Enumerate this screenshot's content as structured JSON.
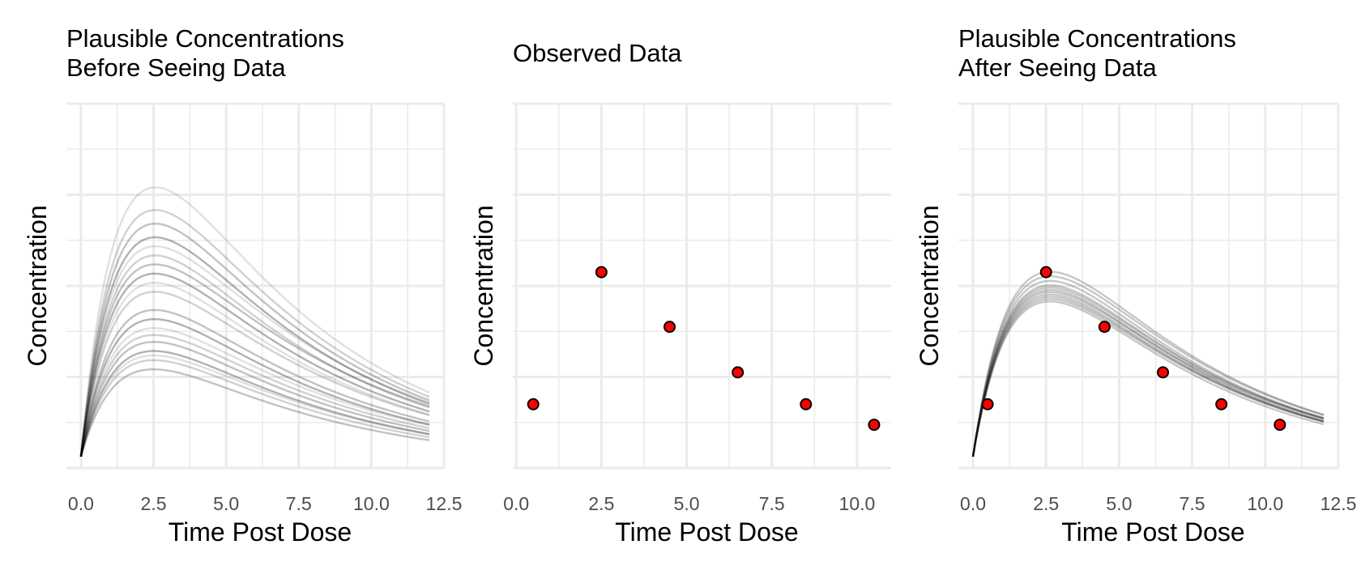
{
  "chart_data": [
    {
      "type": "line",
      "title_lines": [
        "Plausible Concentrations",
        "Before Seeing Data"
      ],
      "xlabel": "Time Post Dose",
      "ylabel": "Concentration",
      "xlim": [
        -0.5,
        12.5
      ],
      "ylim": [
        0,
        1.6
      ],
      "x_ticks": [
        "0.0",
        "2.5",
        "5.0",
        "7.5",
        "10.0",
        "12.5"
      ],
      "y_tick_labels_shown": false,
      "grid": true,
      "series_style": "many semi-transparent black curves (prior draws)",
      "curves_peak_value_range": [
        0.4,
        1.2
      ],
      "curves_peak_time": 2.6,
      "curves": [
        {
          "peak": 1.2,
          "c12": 0.22
        },
        {
          "peak": 1.1,
          "c12": 0.21
        },
        {
          "peak": 1.04,
          "c12": 0.2
        },
        {
          "peak": 0.98,
          "c12": 0.19
        },
        {
          "peak": 0.94,
          "c12": 0.2
        },
        {
          "peak": 0.9,
          "c12": 0.18
        },
        {
          "peak": 0.86,
          "c12": 0.19
        },
        {
          "peak": 0.82,
          "c12": 0.17
        },
        {
          "peak": 0.78,
          "c12": 0.16
        },
        {
          "peak": 0.74,
          "c12": 0.16
        },
        {
          "peak": 0.66,
          "c12": 0.14
        },
        {
          "peak": 0.62,
          "c12": 0.13
        },
        {
          "peak": 0.58,
          "c12": 0.13
        },
        {
          "peak": 0.55,
          "c12": 0.12
        },
        {
          "peak": 0.52,
          "c12": 0.11
        },
        {
          "peak": 0.48,
          "c12": 0.1
        },
        {
          "peak": 0.46,
          "c12": 0.1
        },
        {
          "peak": 0.44,
          "c12": 0.09
        },
        {
          "peak": 0.4,
          "c12": 0.08
        }
      ]
    },
    {
      "type": "scatter",
      "title_lines": [
        "Observed Data"
      ],
      "xlabel": "Time Post Dose",
      "ylabel": "Concentration",
      "xlim": [
        -0.1,
        11.0
      ],
      "ylim": [
        0,
        1.6
      ],
      "x_ticks": [
        "0.0",
        "2.5",
        "5.0",
        "7.5",
        "10.0"
      ],
      "y_tick_labels_shown": false,
      "grid": true,
      "point_color": "#ff0000",
      "points": [
        {
          "x": 0.5,
          "y": 0.28
        },
        {
          "x": 2.5,
          "y": 0.86
        },
        {
          "x": 4.5,
          "y": 0.62
        },
        {
          "x": 6.5,
          "y": 0.42
        },
        {
          "x": 8.5,
          "y": 0.28
        },
        {
          "x": 10.5,
          "y": 0.19
        }
      ]
    },
    {
      "type": "line",
      "title_lines": [
        "Plausible Concentrations",
        "After Seeing Data"
      ],
      "xlabel": "Time Post Dose",
      "ylabel": "Concentration",
      "xlim": [
        -0.5,
        12.5
      ],
      "ylim": [
        0,
        1.6
      ],
      "x_ticks": [
        "0.0",
        "2.5",
        "5.0",
        "7.5",
        "10.0",
        "12.5"
      ],
      "y_tick_labels_shown": false,
      "grid": true,
      "series_style": "many semi-transparent black curves (posterior draws)",
      "curves_peak_time": 2.7,
      "curves": [
        {
          "peak": 0.83,
          "c12": 0.15
        },
        {
          "peak": 0.81,
          "c12": 0.15
        },
        {
          "peak": 0.79,
          "c12": 0.14
        },
        {
          "peak": 0.77,
          "c12": 0.14
        },
        {
          "peak": 0.76,
          "c12": 0.14
        },
        {
          "peak": 0.75,
          "c12": 0.13
        },
        {
          "peak": 0.74,
          "c12": 0.14
        },
        {
          "peak": 0.73,
          "c12": 0.13
        },
        {
          "peak": 0.72,
          "c12": 0.13
        },
        {
          "peak": 0.71,
          "c12": 0.13
        },
        {
          "peak": 0.7,
          "c12": 0.12
        }
      ],
      "point_color": "#ff0000",
      "points": [
        {
          "x": 0.5,
          "y": 0.28
        },
        {
          "x": 2.5,
          "y": 0.86
        },
        {
          "x": 4.5,
          "y": 0.62
        },
        {
          "x": 6.5,
          "y": 0.42
        },
        {
          "x": 8.5,
          "y": 0.28
        },
        {
          "x": 10.5,
          "y": 0.19
        }
      ]
    }
  ]
}
